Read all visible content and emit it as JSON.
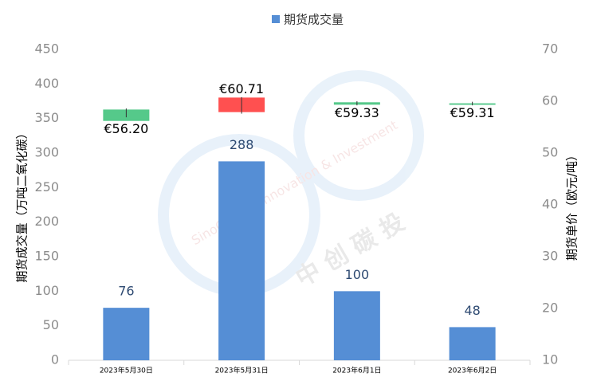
{
  "chart_data": {
    "type": "bar-candlestick",
    "legend": {
      "position": "top"
    },
    "categories": [
      "2023年5月30日",
      "2023年5月31日",
      "2023年6月1日",
      "2023年6月2日"
    ],
    "series": [
      {
        "name": "期货成交量",
        "color": "#558ed5",
        "values": [
          76,
          288,
          100,
          48
        ]
      }
    ],
    "candles": {
      "axis": "y2",
      "up_color": "#ff5050",
      "down_color": "#55c98a",
      "open": [
        58.4,
        57.9,
        59.8,
        59.6
      ],
      "high": [
        58.6,
        60.8,
        60.0,
        59.9
      ],
      "low": [
        56.9,
        57.6,
        59.2,
        59.2
      ],
      "close": [
        56.2,
        60.71,
        59.33,
        59.31
      ],
      "value_labels": [
        "€56.20",
        "€60.71",
        "€59.33",
        "€59.31"
      ]
    },
    "ylabel": "期货成交量（万吨二氧化碳）",
    "y2label": "期货单价（欧元/吨）",
    "ylim": [
      0,
      450
    ],
    "yticks": [
      0,
      50,
      100,
      150,
      200,
      250,
      300,
      350,
      400,
      450
    ],
    "y2lim": [
      10,
      70
    ],
    "y2ticks": [
      10,
      20,
      30,
      40,
      50,
      60,
      70
    ],
    "watermark": {
      "text_en": "SinoCarbon Innovation & Investment",
      "text_zh": "中 创 碳 投"
    }
  }
}
